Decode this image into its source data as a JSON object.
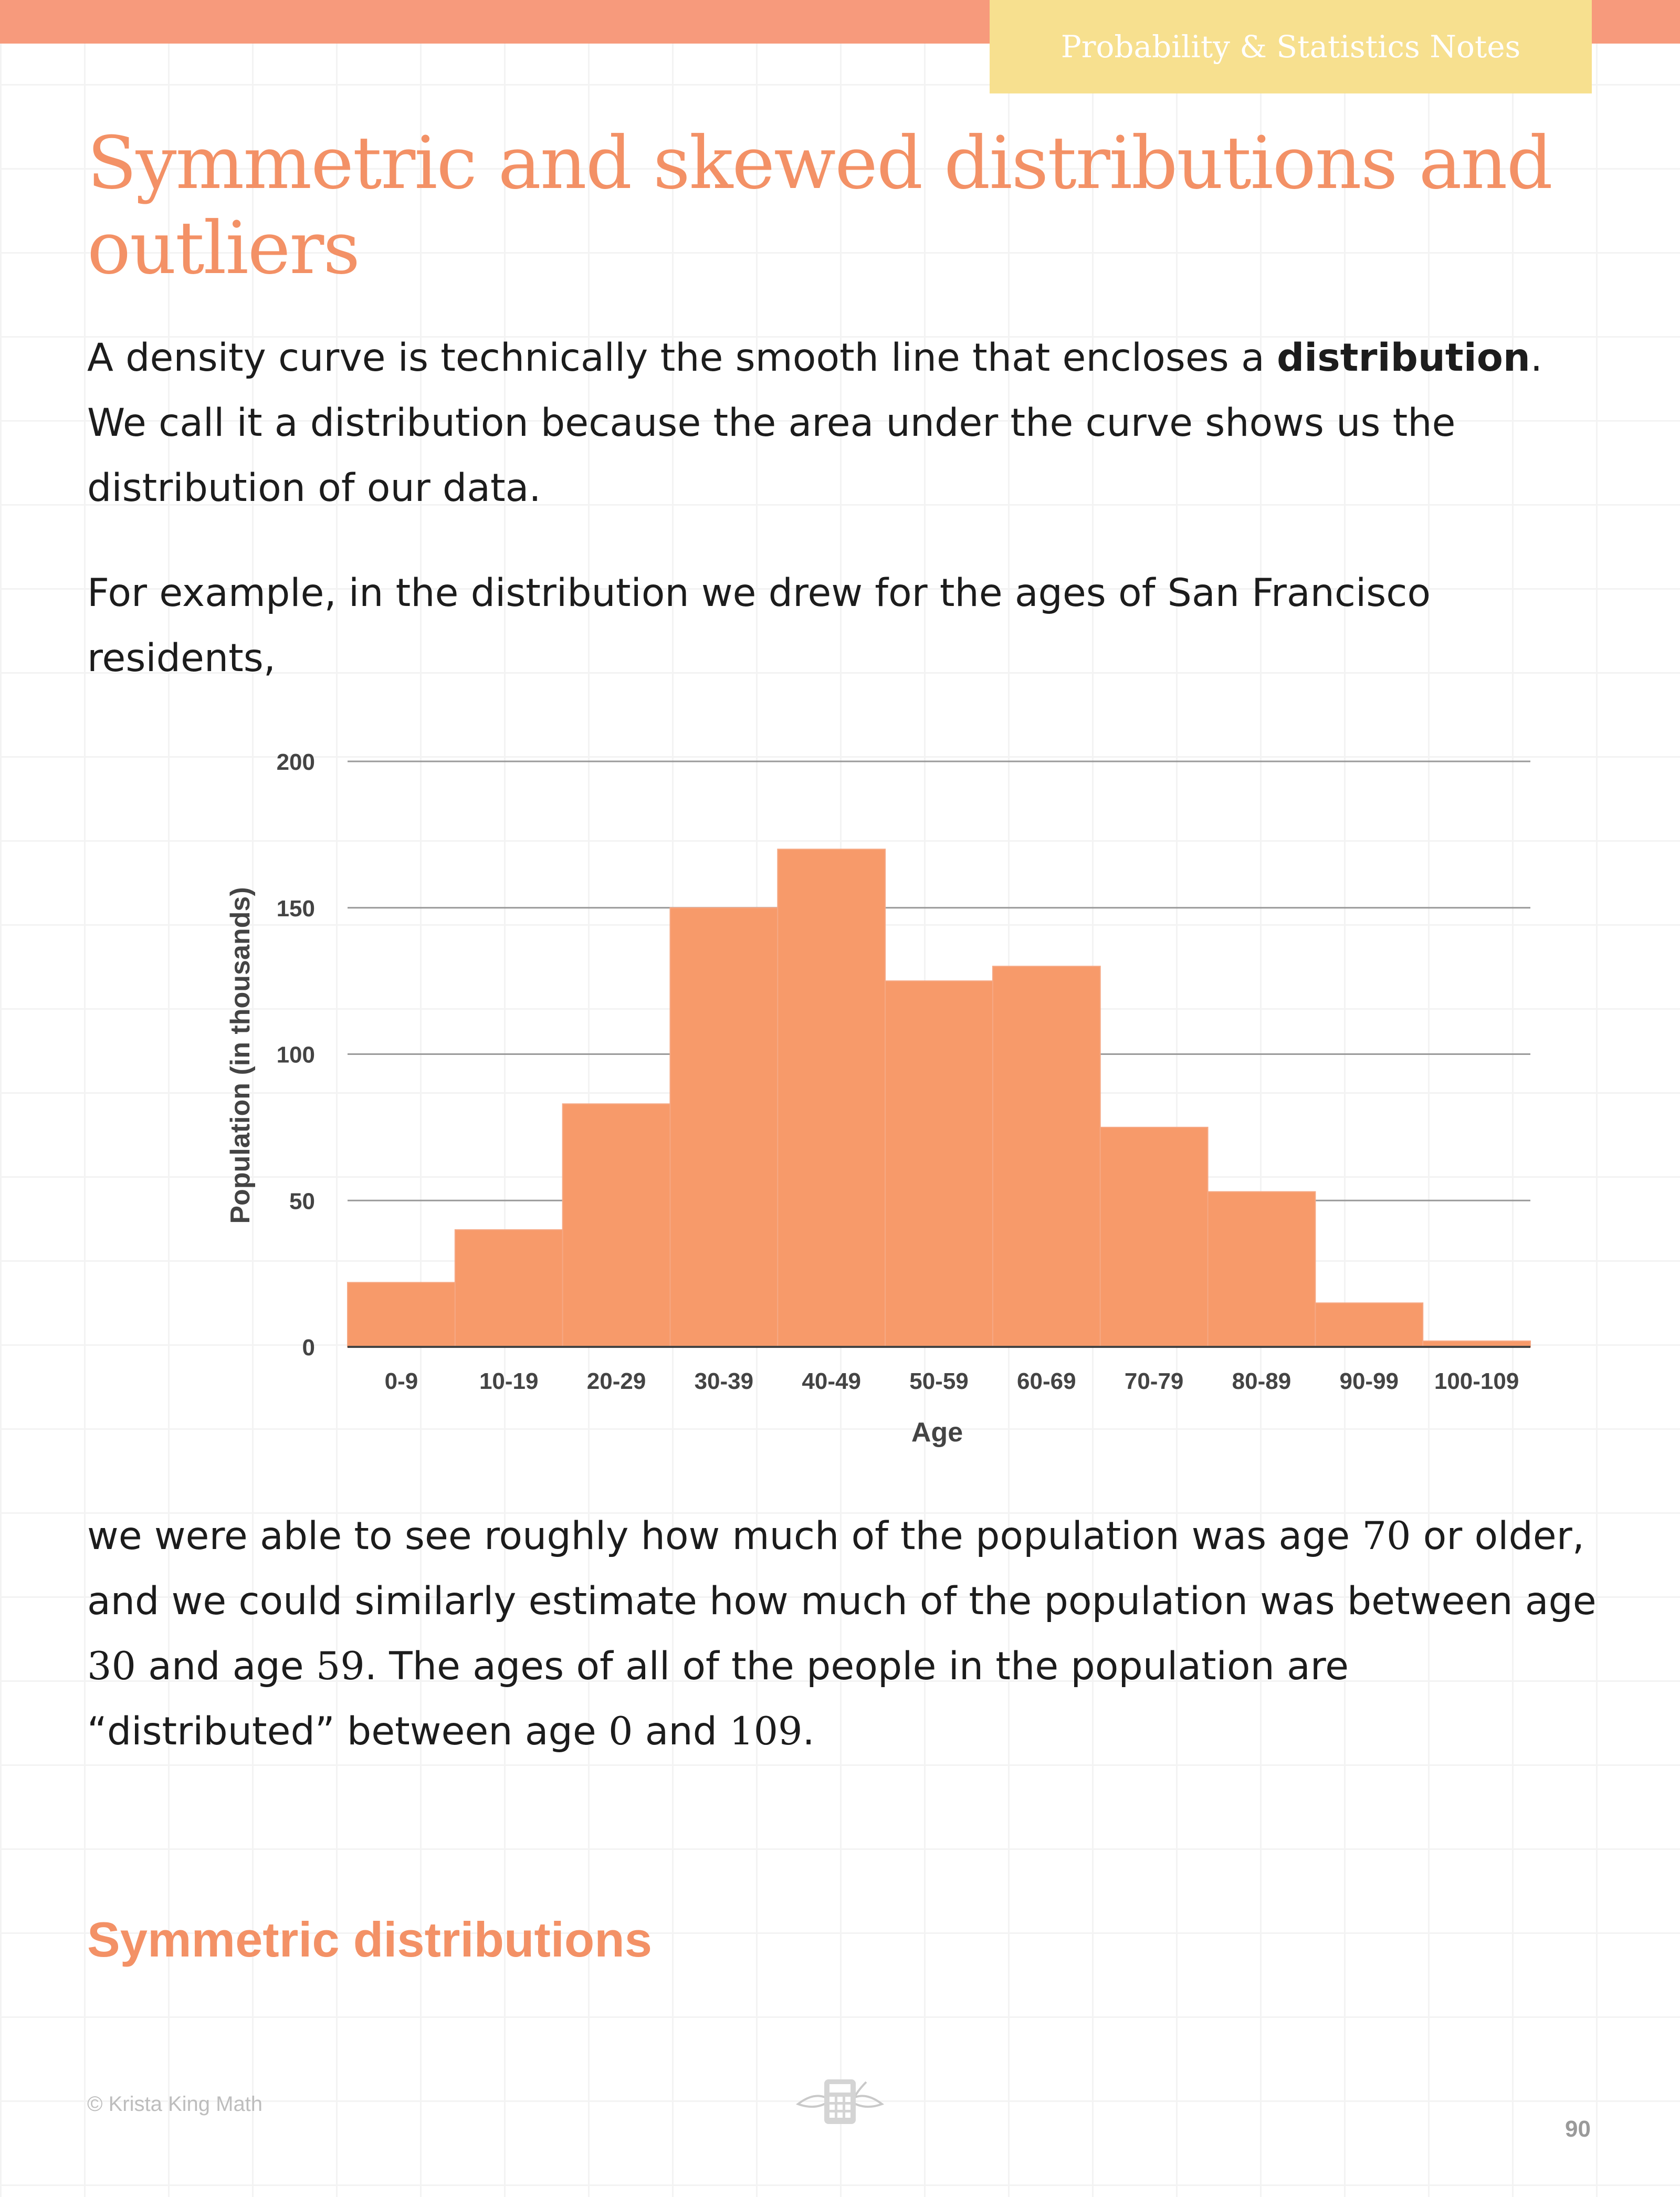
{
  "header": {
    "tab_label": "Probability & Statistics Notes"
  },
  "title": "Symmetric and skewed distributions and outliers",
  "intro": {
    "p1_before": "A density curve is technically the smooth line that encloses a ",
    "p1_bold": "distribution",
    "p1_after": ". We call it a distribution because the area under the curve shows us the distribution of our data.",
    "p2": "For example, in the distribution we drew for the ages of San Francisco residents,"
  },
  "after_chart": {
    "s1": "we were able to see roughly how much of the population was age ",
    "n1": "70",
    "s2": " or older, and we could similarly estimate how much of the population was between age ",
    "n2": "30",
    "s3": " and age ",
    "n3": "59",
    "s4": ". The ages of all of the people in the population are “distributed” between age ",
    "n4": "0",
    "s5": " and ",
    "n5": "109",
    "s6": "."
  },
  "section_heading": "Symmetric distributions",
  "footer": {
    "copyright": "© Krista King Math",
    "page_number": "90",
    "logo_icon": "calculator-leaves-icon"
  },
  "colors": {
    "accent": "#f39166",
    "topbar": "#f79a7c",
    "tab": "#f7e08f",
    "bar": "#f79a6a"
  },
  "chart_data": {
    "type": "bar",
    "categories": [
      "0-9",
      "10-19",
      "20-29",
      "30-39",
      "40-49",
      "50-59",
      "60-69",
      "70-79",
      "80-89",
      "90-99",
      "100-109"
    ],
    "values": [
      22,
      40,
      83,
      150,
      170,
      125,
      130,
      75,
      53,
      15,
      2
    ],
    "xlabel": "Age",
    "ylabel": "Population (in thousands)",
    "ylim": [
      0,
      200
    ],
    "yticks": [
      0,
      50,
      100,
      150,
      200
    ],
    "grid": true,
    "legend": "none"
  }
}
